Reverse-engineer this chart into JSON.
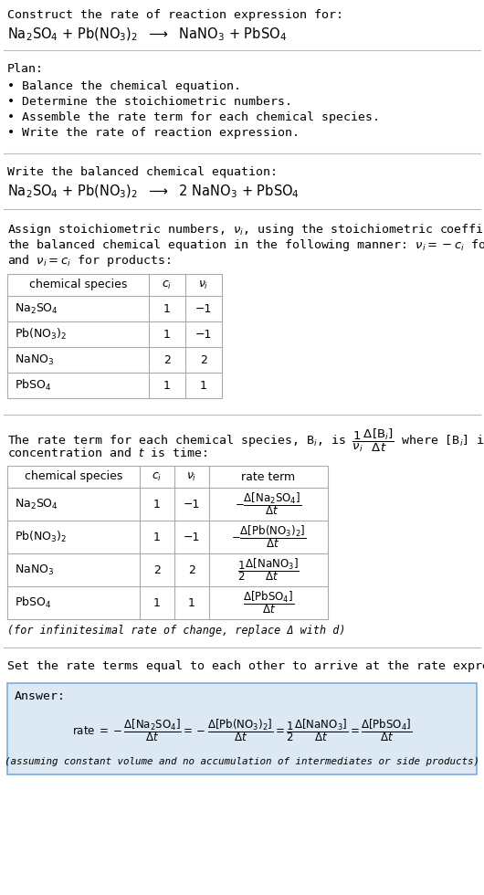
{
  "bg_color": "#ffffff",
  "text_color": "#000000",
  "title_line1": "Construct the rate of reaction expression for:",
  "plan_header": "Plan:",
  "plan_items": [
    "• Balance the chemical equation.",
    "• Determine the stoichiometric numbers.",
    "• Assemble the rate term for each chemical species.",
    "• Write the rate of reaction expression."
  ],
  "balanced_header": "Write the balanced chemical equation:",
  "stoich_intro_line1": "Assign stoichiometric numbers, $\\nu_i$, using the stoichiometric coefficients, $c_i$, from",
  "stoich_intro_line2": "the balanced chemical equation in the following manner: $\\nu_i = -c_i$ for reactants",
  "stoich_intro_line3": "and $\\nu_i = c_i$ for products:",
  "table1_headers": [
    "chemical species",
    "$c_i$",
    "$\\nu_i$"
  ],
  "table1_rows": [
    [
      "Na$_2$SO$_4$",
      "1",
      "−1"
    ],
    [
      "Pb(NO$_3$)$_2$",
      "1",
      "−1"
    ],
    [
      "NaNO$_3$",
      "2",
      "2"
    ],
    [
      "PbSO$_4$",
      "1",
      "1"
    ]
  ],
  "rate_intro_line1": "The rate term for each chemical species, B$_i$, is $\\dfrac{1}{\\nu_i}\\dfrac{\\Delta[\\mathrm{B}_i]}{\\Delta t}$ where [B$_i$] is the amount",
  "rate_intro_line2": "concentration and $t$ is time:",
  "table2_headers": [
    "chemical species",
    "$c_i$",
    "$\\nu_i$",
    "rate term"
  ],
  "table2_rows": [
    [
      "Na$_2$SO$_4$",
      "1",
      "−1",
      "$-\\dfrac{\\Delta[\\mathrm{Na_2SO_4}]}{\\Delta t}$"
    ],
    [
      "Pb(NO$_3$)$_2$",
      "1",
      "−1",
      "$-\\dfrac{\\Delta[\\mathrm{Pb(NO_3)_2}]}{\\Delta t}$"
    ],
    [
      "NaNO$_3$",
      "2",
      "2",
      "$\\dfrac{1}{2}\\dfrac{\\Delta[\\mathrm{NaNO_3}]}{\\Delta t}$"
    ],
    [
      "PbSO$_4$",
      "1",
      "1",
      "$\\dfrac{\\Delta[\\mathrm{PbSO_4}]}{\\Delta t}$"
    ]
  ],
  "infinitesimal_note": "(for infinitesimal rate of change, replace Δ with d)",
  "final_header": "Set the rate terms equal to each other to arrive at the rate expression:",
  "answer_box_bg": "#dce9f5",
  "answer_box_border": "#7aadde",
  "answer_label": "Answer:",
  "assumption_note": "(assuming constant volume and no accumulation of intermediates or side products)"
}
